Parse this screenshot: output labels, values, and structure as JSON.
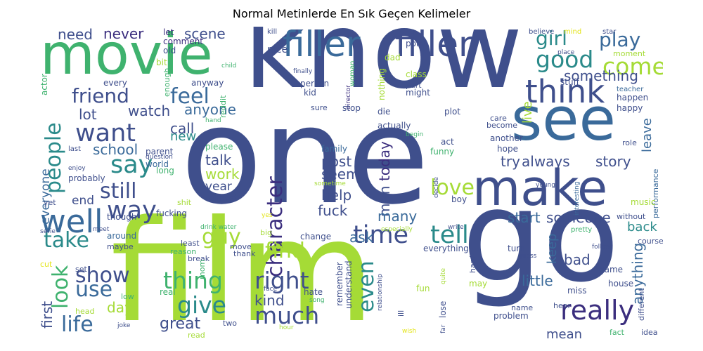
{
  "title": "Normal Metinlerde En Sık Geçen Kelimeler",
  "palette": {
    "deep_purple": "#3b2e7e",
    "indigo": "#3f4f8c",
    "blue": "#3a6a9a",
    "teal": "#2a8a8a",
    "green": "#3fb26e",
    "lime": "#a5db36",
    "yellow": "#e3e418"
  },
  "words": [
    {
      "text": "know",
      "color": "#3f4f8c"
    },
    {
      "text": "one",
      "color": "#3f4f8c"
    },
    {
      "text": "go",
      "color": "#3f4f8c"
    },
    {
      "text": "film",
      "color": "#a5db36"
    },
    {
      "text": "movie",
      "color": "#3fb26e"
    },
    {
      "text": "make",
      "color": "#3f4f8c"
    },
    {
      "text": "see",
      "color": "#3a6a9a"
    },
    {
      "text": "filler",
      "color": "#3a6a9a"
    },
    {
      "text": "filler",
      "color": "#3f4f8c"
    },
    {
      "text": "think",
      "color": "#3f4f8c"
    },
    {
      "text": "good",
      "color": "#2a8a8a"
    },
    {
      "text": "come",
      "color": "#a5db36"
    },
    {
      "text": "girl",
      "color": "#2a8a8a"
    },
    {
      "text": "play",
      "color": "#3a6a9a"
    },
    {
      "text": "something",
      "color": "#3f4f8c"
    },
    {
      "text": "friend",
      "color": "#3f4f8c"
    },
    {
      "text": "feel",
      "color": "#3a6a9a"
    },
    {
      "text": "people",
      "color": "#2a8a8a"
    },
    {
      "text": "want",
      "color": "#3f4f8c"
    },
    {
      "text": "say",
      "color": "#2a8a8a"
    },
    {
      "text": "well",
      "color": "#3a6a9a"
    },
    {
      "text": "way",
      "color": "#3f4f8c"
    },
    {
      "text": "still",
      "color": "#3f4f8c"
    },
    {
      "text": "character",
      "color": "#3b2e7e"
    },
    {
      "text": "time",
      "color": "#3f4f8c"
    },
    {
      "text": "tell",
      "color": "#2a8a8a"
    },
    {
      "text": "love",
      "color": "#a5db36"
    },
    {
      "text": "try",
      "color": "#3f4f8c"
    },
    {
      "text": "always",
      "color": "#3f4f8c"
    },
    {
      "text": "story",
      "color": "#3f4f8c"
    },
    {
      "text": "really",
      "color": "#3b2e7e"
    },
    {
      "text": "even",
      "color": "#2a8a8a"
    },
    {
      "text": "much",
      "color": "#3f4f8c"
    },
    {
      "text": "right",
      "color": "#3f4f8c"
    },
    {
      "text": "find",
      "color": "#a5db36"
    },
    {
      "text": "give",
      "color": "#2a8a8a"
    },
    {
      "text": "thing",
      "color": "#3fb26e"
    },
    {
      "text": "guy",
      "color": "#a5db36"
    },
    {
      "text": "take",
      "color": "#2a8a8a"
    },
    {
      "text": "look",
      "color": "#3fb26e"
    },
    {
      "text": "show",
      "color": "#3f4f8c"
    },
    {
      "text": "use",
      "color": "#3a6a9a"
    },
    {
      "text": "life",
      "color": "#3a6a9a"
    },
    {
      "text": "great",
      "color": "#3f4f8c"
    },
    {
      "text": "kind",
      "color": "#3f4f8c"
    },
    {
      "text": "day",
      "color": "#a5db36"
    },
    {
      "text": "first",
      "color": "#3f4f8c"
    },
    {
      "text": "watch",
      "color": "#3f4f8c"
    },
    {
      "text": "lot",
      "color": "#3f4f8c"
    },
    {
      "text": "anyone",
      "color": "#3a6a9a"
    },
    {
      "text": "call",
      "color": "#3f4f8c"
    },
    {
      "text": "new",
      "color": "#2a8a8a"
    },
    {
      "text": "school",
      "color": "#3a6a9a"
    },
    {
      "text": "talk",
      "color": "#3f4f8c"
    },
    {
      "text": "work",
      "color": "#a5db36"
    },
    {
      "text": "year",
      "color": "#3f4f8c"
    },
    {
      "text": "post",
      "color": "#3f4f8c"
    },
    {
      "text": "seem",
      "color": "#3f4f8c"
    },
    {
      "text": "help",
      "color": "#3f4f8c"
    },
    {
      "text": "fuck",
      "color": "#3f4f8c"
    },
    {
      "text": "man",
      "color": "#3f4f8c"
    },
    {
      "text": "many",
      "color": "#3a6a9a"
    },
    {
      "text": "today",
      "color": "#3b2e7e"
    },
    {
      "text": "start",
      "color": "#3a6a9a"
    },
    {
      "text": "someone",
      "color": "#3f4f8c"
    },
    {
      "text": "back",
      "color": "#2a8a8a"
    },
    {
      "text": "ask",
      "color": "#3a6a9a"
    },
    {
      "text": "keep",
      "color": "#3a6a9a"
    },
    {
      "text": "bad",
      "color": "#3f4f8c"
    },
    {
      "text": "little",
      "color": "#3a6a9a"
    },
    {
      "text": "anything",
      "color": "#3a6a9a"
    },
    {
      "text": "mean",
      "color": "#3f4f8c"
    },
    {
      "text": "need",
      "color": "#3f4f8c"
    },
    {
      "text": "never",
      "color": "#3b2e7e"
    },
    {
      "text": "scene",
      "color": "#3f4f8c"
    },
    {
      "text": "live",
      "color": "#a5db36"
    },
    {
      "text": "leave",
      "color": "#3a6a9a"
    },
    {
      "text": "end",
      "color": "#3f4f8c"
    },
    {
      "text": "everyone",
      "color": "#3a6a9a"
    },
    {
      "text": "let",
      "color": "#3b2e7e"
    },
    {
      "text": "comment",
      "color": "#3b2e7e"
    },
    {
      "text": "old",
      "color": "#3f4f8c"
    },
    {
      "text": "bit",
      "color": "#a5db36"
    },
    {
      "text": "nice",
      "color": "#3f4f8c"
    },
    {
      "text": "dad",
      "color": "#a5db36"
    },
    {
      "text": "point",
      "color": "#3f4f8c"
    },
    {
      "text": "finally",
      "color": "#3f4f8c"
    },
    {
      "text": "director",
      "color": "#3b2e7e"
    },
    {
      "text": "woman",
      "color": "#3fb26e"
    },
    {
      "text": "nothing",
      "color": "#a5db36"
    },
    {
      "text": "part",
      "color": "#3f4f8c"
    },
    {
      "text": "might",
      "color": "#3f4f8c"
    },
    {
      "text": "class",
      "color": "#a5db36"
    },
    {
      "text": "stuff",
      "color": "#3f4f8c"
    },
    {
      "text": "teacher",
      "color": "#3a6a9a"
    },
    {
      "text": "happen",
      "color": "#3f4f8c"
    },
    {
      "text": "happy",
      "color": "#3f4f8c"
    },
    {
      "text": "moment",
      "color": "#a5db36"
    },
    {
      "text": "believe",
      "color": "#3f4f8c"
    },
    {
      "text": "mind",
      "color": "#e3e418"
    },
    {
      "text": "star",
      "color": "#3f4f8c"
    },
    {
      "text": "kill",
      "color": "#3f4f8c"
    },
    {
      "text": "actor",
      "color": "#3fb26e"
    },
    {
      "text": "every",
      "color": "#3f4f8c"
    },
    {
      "text": "anyway",
      "color": "#3f4f8c"
    },
    {
      "text": "enough",
      "color": "#3fb26e"
    },
    {
      "text": "reddit",
      "color": "#3fb26e"
    },
    {
      "text": "child",
      "color": "#3fb26e"
    },
    {
      "text": "person",
      "color": "#3f4f8c"
    },
    {
      "text": "kid",
      "color": "#3f4f8c"
    },
    {
      "text": "sure",
      "color": "#3f4f8c"
    },
    {
      "text": "stop",
      "color": "#3f4f8c"
    },
    {
      "text": "die",
      "color": "#3f4f8c"
    },
    {
      "text": "plot",
      "color": "#3f4f8c"
    },
    {
      "text": "care",
      "color": "#3f4f8c"
    },
    {
      "text": "become",
      "color": "#3f4f8c"
    },
    {
      "text": "actually",
      "color": "#3f4f8c"
    },
    {
      "text": "begin",
      "color": "#3fb26e"
    },
    {
      "text": "act",
      "color": "#3f4f8c"
    },
    {
      "text": "another",
      "color": "#3f4f8c"
    },
    {
      "text": "hope",
      "color": "#3f4f8c"
    },
    {
      "text": "role",
      "color": "#3f4f8c"
    },
    {
      "text": "performance",
      "color": "#3a6a9a"
    },
    {
      "text": "funny",
      "color": "#3fb26e"
    },
    {
      "text": "family",
      "color": "#3a6a9a"
    },
    {
      "text": "last",
      "color": "#3f4f8c"
    },
    {
      "text": "parent",
      "color": "#3f4f8c"
    },
    {
      "text": "please",
      "color": "#3fb26e"
    },
    {
      "text": "world",
      "color": "#3a6a9a"
    },
    {
      "text": "question",
      "color": "#3f4f8c"
    },
    {
      "text": "enjoy",
      "color": "#3f4f8c"
    },
    {
      "text": "long",
      "color": "#3fb26e"
    },
    {
      "text": "probably",
      "color": "#3f4f8c"
    },
    {
      "text": "sometime",
      "color": "#a5db36"
    },
    {
      "text": "decide",
      "color": "#3f4f8c"
    },
    {
      "text": "interesting",
      "color": "#3a6a9a"
    },
    {
      "text": "young",
      "color": "#3f4f8c"
    },
    {
      "text": "yet",
      "color": "#3f4f8c"
    },
    {
      "text": "shit",
      "color": "#a5db36"
    },
    {
      "text": "almost",
      "color": "#3f4f8c"
    },
    {
      "text": "boy",
      "color": "#3f4f8c"
    },
    {
      "text": "music",
      "color": "#a5db36"
    },
    {
      "text": "fucking",
      "color": "#3f4f8c"
    },
    {
      "text": "though",
      "color": "#3f4f8c"
    },
    {
      "text": "drink water",
      "color": "#3fb26e"
    },
    {
      "text": "yes",
      "color": "#e3e418"
    },
    {
      "text": "especially",
      "color": "#a5db36"
    },
    {
      "text": "write",
      "color": "#3f4f8c"
    },
    {
      "text": "pretty",
      "color": "#3fb26e"
    },
    {
      "text": "without",
      "color": "#3f4f8c"
    },
    {
      "text": "serie",
      "color": "#3f4f8c"
    },
    {
      "text": "meet",
      "color": "#3f4f8c"
    },
    {
      "text": "around",
      "color": "#3a6a9a"
    },
    {
      "text": "big",
      "color": "#a5db36"
    },
    {
      "text": "change",
      "color": "#3f4f8c"
    },
    {
      "text": "course",
      "color": "#3f4f8c"
    },
    {
      "text": "maybe",
      "color": "#3f4f8c"
    },
    {
      "text": "least",
      "color": "#3f4f8c"
    },
    {
      "text": "everything",
      "color": "#3f4f8c"
    },
    {
      "text": "follow",
      "color": "#3f4f8c"
    },
    {
      "text": "reason",
      "color": "#3fb26e"
    },
    {
      "text": "move",
      "color": "#3f4f8c"
    },
    {
      "text": "turn",
      "color": "#3f4f8c"
    },
    {
      "text": "cut",
      "color": "#e3e418"
    },
    {
      "text": "break",
      "color": "#3f4f8c"
    },
    {
      "text": "thank",
      "color": "#3f4f8c"
    },
    {
      "text": "guess",
      "color": "#3f4f8c"
    },
    {
      "text": "set",
      "color": "#3f4f8c"
    },
    {
      "text": "mom",
      "color": "#3fb26e"
    },
    {
      "text": "game",
      "color": "#3f4f8c"
    },
    {
      "text": "real",
      "color": "#3fb26e"
    },
    {
      "text": "understand",
      "color": "#3f4f8c"
    },
    {
      "text": "remember",
      "color": "#3f4f8c"
    },
    {
      "text": "relationship",
      "color": "#3f4f8c"
    },
    {
      "text": "quite",
      "color": "#a5db36"
    },
    {
      "text": "hard",
      "color": "#3f4f8c"
    },
    {
      "text": "miss",
      "color": "#3f4f8c"
    },
    {
      "text": "house",
      "color": "#3f4f8c"
    },
    {
      "text": "low",
      "color": "#3fb26e"
    },
    {
      "text": "face",
      "color": "#3f4f8c"
    },
    {
      "text": "hate",
      "color": "#3f4f8c"
    },
    {
      "text": "fun",
      "color": "#a5db36"
    },
    {
      "text": "may",
      "color": "#a5db36"
    },
    {
      "text": "different",
      "color": "#3f4f8c"
    },
    {
      "text": "head",
      "color": "#a5db36"
    },
    {
      "text": "song",
      "color": "#3fb26e"
    },
    {
      "text": "ill",
      "color": "#3f4f8c"
    },
    {
      "text": "lose",
      "color": "#3f4f8c"
    },
    {
      "text": "name",
      "color": "#3f4f8c"
    },
    {
      "text": "hear",
      "color": "#3f4f8c"
    },
    {
      "text": "joke",
      "color": "#3f4f8c"
    },
    {
      "text": "two",
      "color": "#3f4f8c"
    },
    {
      "text": "problem",
      "color": "#3f4f8c"
    },
    {
      "text": "far",
      "color": "#3f4f8c"
    },
    {
      "text": "hour",
      "color": "#a5db36"
    },
    {
      "text": "read",
      "color": "#a5db36"
    },
    {
      "text": "wish",
      "color": "#e3e418"
    },
    {
      "text": "fact",
      "color": "#3fb26e"
    },
    {
      "text": "idea",
      "color": "#3f4f8c"
    },
    {
      "text": "place",
      "color": "#3f4f8c"
    },
    {
      "text": "hand",
      "color": "#3fb26e"
    }
  ]
}
